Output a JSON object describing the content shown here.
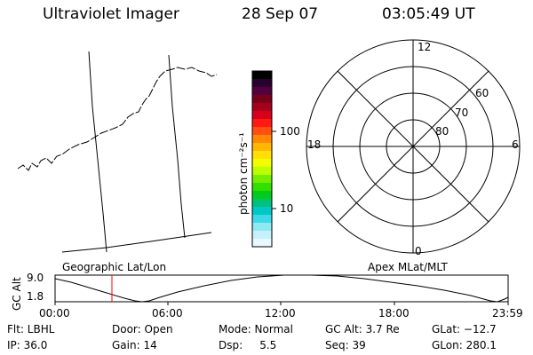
{
  "header": {
    "title": "Ultraviolet Imager",
    "date": "28 Sep 07",
    "time": "03:05:49 UT"
  },
  "colorbar": {
    "unit_label": "photon cm⁻²s⁻¹",
    "tick_100": "100",
    "tick_10": "10",
    "colors_top_to_bottom": [
      "#000000",
      "#2a0030",
      "#55003a",
      "#7a0018",
      "#a8001c",
      "#d80018",
      "#ff1a10",
      "#ff5010",
      "#ff8a00",
      "#ffb800",
      "#ffe000",
      "#f0ff00",
      "#b8ff00",
      "#70f000",
      "#30e000",
      "#00cc20",
      "#00c080",
      "#00c8c8",
      "#40d8e8",
      "#90e8f0",
      "#c8f0f8",
      "#e8f8fc"
    ]
  },
  "geo_panel": {
    "label": "Geographic Lat/Lon"
  },
  "polar_panel": {
    "label": "Apex MLat/MLT",
    "mlt_labels": {
      "top": "12",
      "left": "18",
      "right": "6",
      "bottom": "0"
    },
    "lat_labels": [
      "60",
      "70",
      "80"
    ]
  },
  "altitude_plot": {
    "ylabel": "GC Alt",
    "ytick_top": "9.0",
    "ytick_bottom": "1.8",
    "xticks": [
      "00:00",
      "06:00",
      "12:00",
      "18:00",
      "23:59"
    ],
    "current_time_marker_color": "#ff0000"
  },
  "status": {
    "flt": "Flt: LBHL",
    "ip": "IP: 36.0",
    "door": "Door: Open",
    "gain": "Gain: 14",
    "mode": "Mode: Normal",
    "dsp": "Dsp:     5.5",
    "gc_alt": "GC Alt: 3.7 Re",
    "seq": "Seq: 39",
    "glat": "GLat: −12.7",
    "glon": "GLon: 280.1"
  }
}
